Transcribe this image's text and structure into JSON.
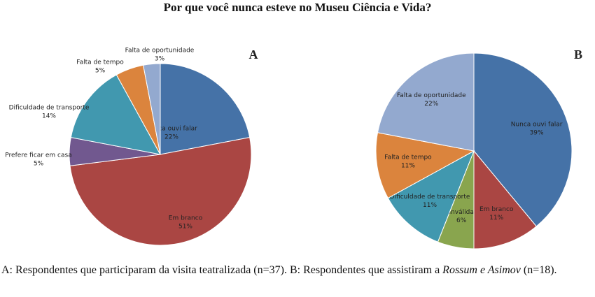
{
  "title": "Por que você nunca esteve no Museu Ciência e Vida?",
  "chart_data": [
    {
      "type": "pie",
      "panel": "A",
      "categories": [
        "Nunca ouvi falar",
        "Em branco",
        "Prefere ficar em casa",
        "Dificuldade de transporte",
        "Falta de tempo",
        "Falta de oportunidade"
      ],
      "values": [
        22,
        51,
        5,
        14,
        5,
        3
      ],
      "value_labels": [
        "22%",
        "51%",
        "5%",
        "14%",
        "5%",
        "3%"
      ],
      "colors": [
        "#4572a7",
        "#aa4643",
        "#71588f",
        "#4198af",
        "#db843d",
        "#93a9cf"
      ]
    },
    {
      "type": "pie",
      "panel": "B",
      "categories": [
        "Nunca ouvi falar",
        "Em branco",
        "Inválida",
        "Dificuldade de transporte",
        "Falta de tempo",
        "Falta de oportunidade"
      ],
      "values": [
        39,
        11,
        6,
        11,
        11,
        22
      ],
      "value_labels": [
        "39%",
        "11%",
        "6%",
        "11%",
        "11%",
        "22%"
      ],
      "colors": [
        "#4572a7",
        "#aa4643",
        "#89a54e",
        "#4198af",
        "#db843d",
        "#93a9cf"
      ]
    }
  ],
  "caption": [
    "A: Respondentes que participaram da visita teatralizada (n=37). B: Respondentes que assistiram a ",
    "Rossum e Asimov",
    " (n=18)."
  ]
}
